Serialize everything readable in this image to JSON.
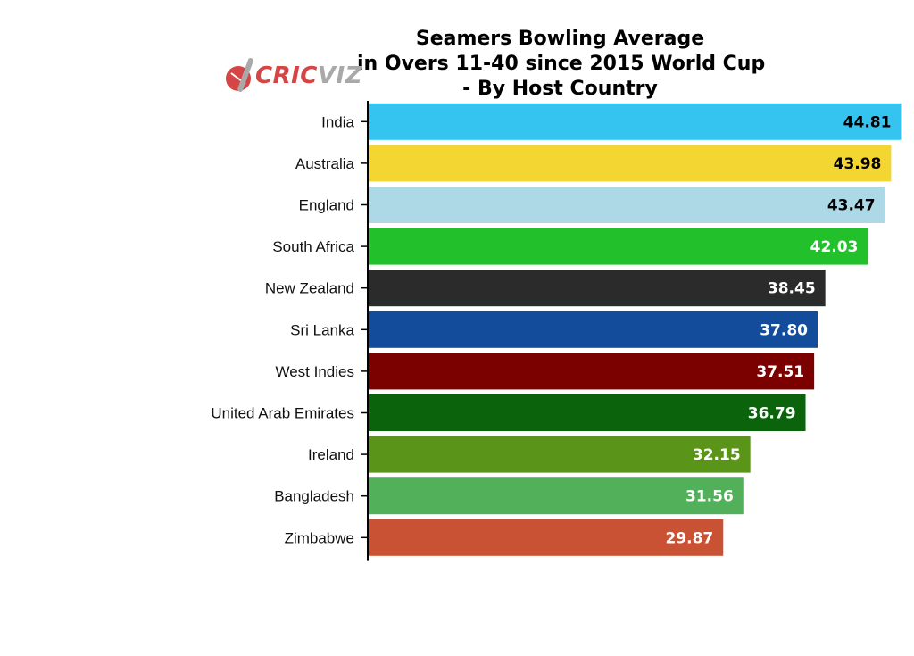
{
  "logo": {
    "part1": "CRIC",
    "part2": "VIZ",
    "brand_color": "#d64545",
    "secondary_color": "#a9a9a9",
    "icon": "cricket-bat-ball-icon"
  },
  "chart_data": {
    "type": "bar",
    "orientation": "horizontal",
    "title_lines": [
      "Seamers Bowling Average",
      "in Overs 11-40 since 2015 World Cup",
      "- By Host Country"
    ],
    "categories": [
      "India",
      "Australia",
      "England",
      "South Africa",
      "New Zealand",
      "Sri Lanka",
      "West Indies",
      "United Arab Emirates",
      "Ireland",
      "Bangladesh",
      "Zimbabwe"
    ],
    "values": [
      44.81,
      43.98,
      43.47,
      42.03,
      38.45,
      37.8,
      37.51,
      36.79,
      32.15,
      31.56,
      29.87
    ],
    "value_labels": [
      "44.81",
      "43.98",
      "43.47",
      "42.03",
      "38.45",
      "37.80",
      "37.51",
      "36.79",
      "32.15",
      "31.56",
      "29.87"
    ],
    "colors": [
      "#35c3f0",
      "#f3d631",
      "#add8e6",
      "#22c02a",
      "#2b2b2b",
      "#124c9b",
      "#7b0000",
      "#0b640b",
      "#5a9418",
      "#53b05a",
      "#c95234"
    ],
    "label_colors": [
      "#000000",
      "#000000",
      "#000000",
      "#ffffff",
      "#ffffff",
      "#ffffff",
      "#ffffff",
      "#ffffff",
      "#ffffff",
      "#ffffff",
      "#ffffff"
    ],
    "xlim": [
      0,
      45
    ],
    "xaxis_visible": false,
    "grid": false,
    "xlabel": "",
    "ylabel": ""
  }
}
